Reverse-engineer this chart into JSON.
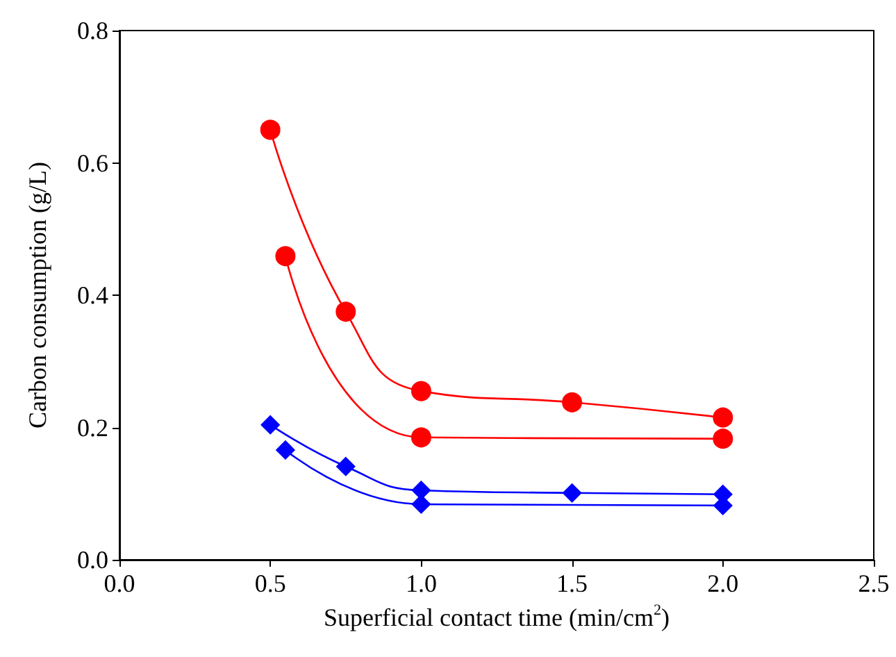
{
  "chart_data": {
    "type": "line",
    "xlabel": "Superficial contact time (min/cm$^{2}$)",
    "ylabel": "Carbon consumption (g/L)",
    "xlim": [
      0,
      2.5
    ],
    "xticks": [
      {
        "value": 0,
        "label": "0.0"
      },
      {
        "value": 0.5,
        "label": "0.5"
      },
      {
        "value": 1,
        "label": "1.0"
      },
      {
        "value": 1.5,
        "label": "1.5"
      },
      {
        "value": 2,
        "label": "2.0"
      },
      {
        "value": 2.5,
        "label": "2.5"
      }
    ],
    "ylim": [
      0,
      0.8
    ],
    "yticks": [
      {
        "value": 0,
        "label": "0.0"
      },
      {
        "value": 0.2,
        "label": "0.2"
      },
      {
        "value": 0.4,
        "label": "0.4"
      },
      {
        "value": 0.6,
        "label": "0.6"
      },
      {
        "value": 0.8,
        "label": "0.8"
      }
    ],
    "grid": false,
    "line_style": "solid",
    "series": [
      {
        "color": "#ff0000",
        "marker": "circle",
        "x": [
          0.5,
          0.75,
          1.0,
          1.5,
          2.0
        ],
        "values": [
          0.65,
          0.375,
          0.255,
          0.238,
          0.215
        ]
      },
      {
        "color": "#ff0000",
        "marker": "circle",
        "x": [
          0.55,
          1.0,
          2.0
        ],
        "values": [
          0.459,
          0.185,
          0.183
        ]
      },
      {
        "color": "#0000ff",
        "marker": "diamond",
        "x": [
          0.5,
          0.75,
          1.0,
          1.5,
          2.0
        ],
        "values": [
          0.204,
          0.141,
          0.105,
          0.101,
          0.099
        ]
      },
      {
        "color": "#0000ff",
        "marker": "diamond",
        "x": [
          0.55,
          1.0,
          2.0
        ],
        "values": [
          0.166,
          0.084,
          0.082
        ]
      }
    ]
  }
}
